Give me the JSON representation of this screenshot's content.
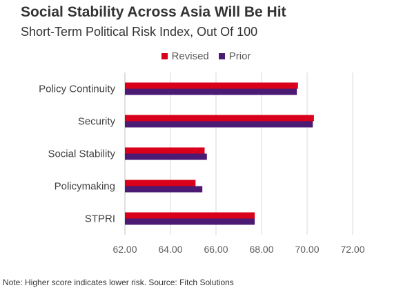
{
  "title": "Social Stability Across Asia Will Be Hit",
  "subtitle": "Short-Term Political Risk Index, Out Of 100",
  "note": "Note: Higher score indicates lower risk. Source: Fitch Solutions",
  "chart_data": {
    "type": "bar",
    "orientation": "horizontal",
    "categories": [
      "Policy Continuity",
      "Security",
      "Social Stability",
      "Policymaking",
      "STPRI"
    ],
    "series": [
      {
        "name": "Revised",
        "color": "#d9001b",
        "values": [
          69.6,
          70.3,
          65.5,
          65.1,
          67.7
        ]
      },
      {
        "name": "Prior",
        "color": "#4b1a73",
        "values": [
          69.55,
          70.25,
          65.6,
          65.4,
          67.7
        ]
      }
    ],
    "xlim": [
      62,
      72
    ],
    "xticks": [
      "62.00",
      "64.00",
      "66.00",
      "68.00",
      "70.00",
      "72.00"
    ],
    "grid": true,
    "legend": "top-center"
  }
}
